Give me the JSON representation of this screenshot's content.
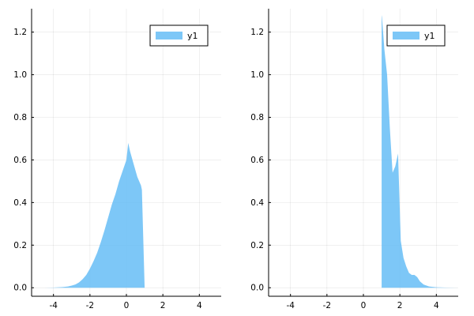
{
  "chart_data": [
    {
      "type": "area",
      "xlim": [
        -5.2,
        5.2
      ],
      "ylim": [
        -0.04,
        1.31
      ],
      "x_ticks": [
        -4,
        -2,
        0,
        2,
        4
      ],
      "x_tick_labels": [
        "-4",
        "-2",
        "0",
        "2",
        "4"
      ],
      "y_ticks": [
        0.0,
        0.2,
        0.4,
        0.6,
        0.8,
        1.0,
        1.2
      ],
      "y_tick_labels": [
        "0.0",
        "0.2",
        "0.4",
        "0.6",
        "0.8",
        "1.0",
        "1.2"
      ],
      "grid": true,
      "legend": "top-right",
      "series": [
        {
          "name": "y1",
          "color": "#66BDF6",
          "x": [
            -4.5,
            -4.0,
            -3.5,
            -3.2,
            -3.0,
            -2.8,
            -2.6,
            -2.4,
            -2.2,
            -2.0,
            -1.8,
            -1.6,
            -1.4,
            -1.2,
            -1.0,
            -0.8,
            -0.6,
            -0.4,
            -0.2,
            0.0,
            0.1,
            0.2,
            0.4,
            0.6,
            0.8,
            0.85,
            1.0
          ],
          "y": [
            0.0,
            0.001,
            0.003,
            0.006,
            0.01,
            0.015,
            0.025,
            0.04,
            0.06,
            0.09,
            0.125,
            0.165,
            0.215,
            0.27,
            0.33,
            0.39,
            0.44,
            0.5,
            0.55,
            0.6,
            0.68,
            0.64,
            0.58,
            0.52,
            0.48,
            0.46,
            0.0
          ]
        }
      ]
    },
    {
      "type": "area",
      "xlim": [
        -5.2,
        5.2
      ],
      "ylim": [
        -0.04,
        1.31
      ],
      "x_ticks": [
        -4,
        -2,
        0,
        2,
        4
      ],
      "x_tick_labels": [
        "-4",
        "-2",
        "0",
        "2",
        "4"
      ],
      "y_ticks": [
        0.0,
        0.2,
        0.4,
        0.6,
        0.8,
        1.0,
        1.2
      ],
      "y_tick_labels": [
        "0.0",
        "0.2",
        "0.4",
        "0.6",
        "0.8",
        "1.0",
        "1.2"
      ],
      "grid": true,
      "legend": "top-right",
      "series": [
        {
          "name": "y1",
          "color": "#66BDF6",
          "x": [
            1.0,
            1.02,
            1.15,
            1.3,
            1.45,
            1.6,
            1.75,
            1.9,
            2.05,
            2.2,
            2.35,
            2.5,
            2.65,
            2.8,
            2.95,
            3.1,
            3.3,
            3.6,
            4.0,
            4.5,
            5.2
          ],
          "y": [
            1.28,
            1.27,
            1.12,
            1.0,
            0.75,
            0.54,
            0.57,
            0.63,
            0.22,
            0.14,
            0.1,
            0.07,
            0.06,
            0.06,
            0.05,
            0.03,
            0.015,
            0.006,
            0.002,
            0.001,
            0.0
          ]
        }
      ]
    }
  ]
}
